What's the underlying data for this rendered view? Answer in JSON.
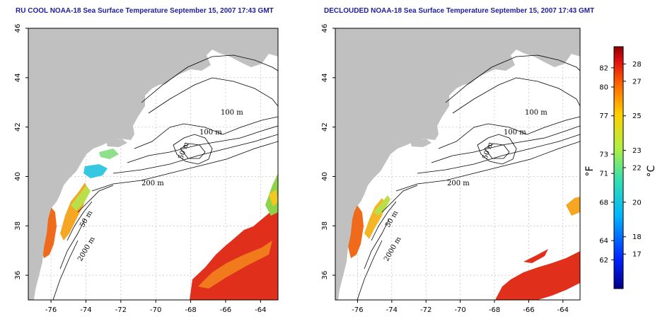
{
  "panels": [
    {
      "title": "RU COOL NOAA-18 Sea Surface Temperature September 15, 2007 17:43 GMT"
    },
    {
      "title": "DECLOUDED NOAA-18 Sea Surface Temperature September 15, 2007 17:43 GMT"
    }
  ],
  "axes": {
    "lon_ticks": [
      "-76",
      "-74",
      "-72",
      "-70",
      "-68",
      "-66",
      "-64"
    ],
    "lat_ticks": [
      "36",
      "38",
      "40",
      "42",
      "44",
      "46"
    ],
    "lon_range": [
      -77.3,
      -63.0
    ],
    "lat_range": [
      35.0,
      46.0
    ]
  },
  "contours": {
    "labels": [
      "100 m",
      "100 m",
      "50 m",
      "200 m",
      "50 m",
      "2000 m"
    ]
  },
  "colorbar": {
    "unit_f": "°F",
    "unit_c": "°C",
    "f_ticks": [
      "82",
      "80",
      "77",
      "73",
      "71",
      "68",
      "64",
      "62"
    ],
    "c_ticks": [
      "28",
      "27",
      "25",
      "23",
      "22",
      "20",
      "18",
      "17"
    ],
    "f_values": [
      82,
      80,
      77,
      73,
      71,
      68,
      64,
      62
    ],
    "c_values": [
      28,
      27,
      25,
      23,
      22,
      20,
      18,
      17
    ],
    "range_c": [
      15,
      29
    ]
  },
  "colors": {
    "land": "#c0c0c0",
    "ocean": "#ffffff",
    "grid": "#b4b4b4",
    "title": "#1d1d9a",
    "sst_hot": "#e0301c",
    "sst_warm": "#f5a623",
    "sst_mid": "#b9e04a",
    "sst_cool": "#35c8e0",
    "sst_cold": "#1c4fd8"
  }
}
